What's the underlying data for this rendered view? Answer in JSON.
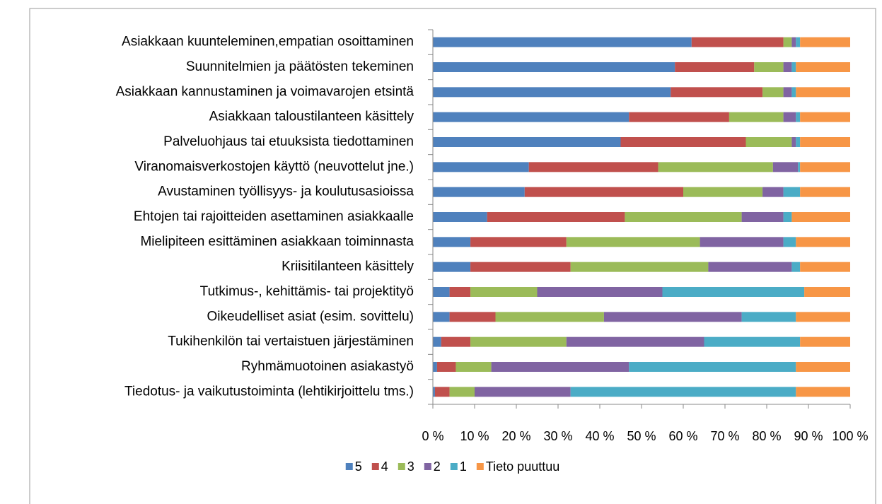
{
  "chart_data": {
    "type": "bar",
    "orientation": "horizontal",
    "stacked": true,
    "categories": [
      "Asiakkaan kuunteleminen,empatian osoittaminen",
      "Suunnitelmien ja päätösten tekeminen",
      "Asiakkaan kannustaminen ja voimavarojen etsintä",
      "Asiakkaan taloustilanteen käsittely",
      "Palveluohjaus tai etuuksista tiedottaminen",
      "Viranomaisverkostojen käyttö (neuvottelut jne.)",
      "Avustaminen työllisyys- ja koulutusasioissa",
      "Ehtojen tai rajoitteiden asettaminen asiakkaalle",
      "Mielipiteen esittäminen asiakkaan toiminnasta",
      "Kriisitilanteen käsittely",
      "Tutkimus-, kehittämis- tai projektityö",
      "Oikeudelliset asiat (esim. sovittelu)",
      "Tukihenkilön tai vertaistuen järjestäminen",
      "Ryhmämuotoinen asiakastyö",
      "Tiedotus- ja vaikutustoiminta (lehtikirjoittelu tms.)"
    ],
    "series": [
      {
        "name": "5",
        "color": "#4f81bd",
        "values": [
          62,
          58,
          57,
          47,
          45,
          23,
          22,
          13,
          9,
          9,
          4,
          4,
          2,
          1,
          0.5
        ]
      },
      {
        "name": "4",
        "color": "#c0504d",
        "values": [
          22,
          19,
          22,
          24,
          30,
          31,
          38,
          33,
          23,
          24,
          5,
          11,
          7,
          4.5,
          3.5
        ]
      },
      {
        "name": "3",
        "color": "#9bbb59",
        "values": [
          2,
          7,
          5,
          13,
          11,
          27.5,
          19,
          28,
          32,
          33,
          16,
          26,
          23,
          8.5,
          6
        ]
      },
      {
        "name": "2",
        "color": "#8064a2",
        "values": [
          1,
          2,
          2,
          3,
          1,
          6,
          5,
          10,
          20,
          20,
          30,
          33,
          33,
          33,
          23
        ]
      },
      {
        "name": "1",
        "color": "#4bacc6",
        "values": [
          1,
          1,
          1,
          1,
          1,
          0.5,
          4,
          2,
          3,
          2,
          34,
          13,
          23,
          40,
          54
        ]
      },
      {
        "name": "Tieto puuttuu",
        "color": "#f79646",
        "values": [
          12,
          13,
          13,
          12,
          12,
          12,
          12,
          14,
          13,
          12,
          11,
          13,
          12,
          13,
          13
        ]
      }
    ],
    "xlim": [
      0,
      100
    ],
    "xticks": [
      {
        "value": 0,
        "label": "0 %"
      },
      {
        "value": 10,
        "label": "10 %"
      },
      {
        "value": 20,
        "label": "20 %"
      },
      {
        "value": 30,
        "label": "30 %"
      },
      {
        "value": 40,
        "label": "40 %"
      },
      {
        "value": 50,
        "label": "50 %"
      },
      {
        "value": 60,
        "label": "60 %"
      },
      {
        "value": 70,
        "label": "70 %"
      },
      {
        "value": 80,
        "label": "80 %"
      },
      {
        "value": 90,
        "label": "90 %"
      },
      {
        "value": 100,
        "label": "100 %"
      }
    ],
    "legend": "bottom"
  }
}
